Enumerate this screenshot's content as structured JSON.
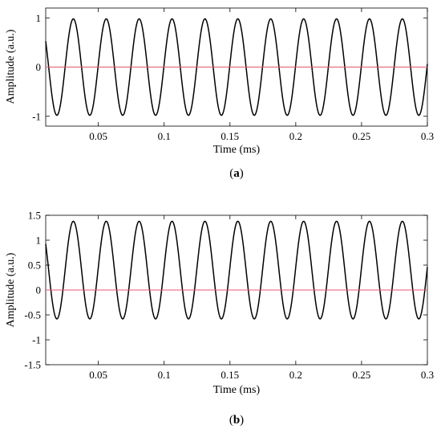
{
  "colors": {
    "signal": "#000000",
    "baseline": "#e8556f",
    "axis": "#000000"
  },
  "chart_data": [
    {
      "type": "line",
      "caption_open": "(",
      "caption_letter": "a",
      "caption_close": ")",
      "title": "",
      "xlabel": "Time (ms)",
      "ylabel": "Amplitude (a.u.)",
      "xlim": [
        0.01,
        0.3
      ],
      "ylim": [
        -1.2,
        1.2
      ],
      "x_ticks": [
        0.05,
        0.1,
        0.15,
        0.2,
        0.25,
        0.3
      ],
      "x_tick_labels": [
        "0.05",
        "0.1",
        "0.15",
        "0.2",
        "0.25",
        "0.3"
      ],
      "y_ticks": [
        -1,
        0,
        1
      ],
      "y_tick_labels": [
        "-1",
        "0",
        "1"
      ],
      "grid": false,
      "series": [
        {
          "kind": "sinusoid",
          "offset": 0,
          "amplitude": 0.98,
          "period_ms": 0.025,
          "peak_at_ms": 0.031,
          "color": "#000000"
        },
        {
          "kind": "constant",
          "value": 0,
          "color": "#e8556f"
        }
      ]
    },
    {
      "type": "line",
      "caption_open": "(",
      "caption_letter": "b",
      "caption_close": ")",
      "title": "",
      "xlabel": "Time (ms)",
      "ylabel": "Amplitude (a.u.)",
      "xlim": [
        0.01,
        0.3
      ],
      "ylim": [
        -1.5,
        1.5
      ],
      "x_ticks": [
        0.05,
        0.1,
        0.15,
        0.2,
        0.25,
        0.3
      ],
      "x_tick_labels": [
        "0.05",
        "0.1",
        "0.15",
        "0.2",
        "0.25",
        "0.3"
      ],
      "y_ticks": [
        -1.5,
        -1,
        -0.5,
        0,
        0.5,
        1,
        1.5
      ],
      "y_tick_labels": [
        "-1.5",
        "-1",
        "-0.5",
        "0",
        "0.5",
        "1",
        "1.5"
      ],
      "grid": false,
      "series": [
        {
          "kind": "sinusoid",
          "offset": 0.4,
          "amplitude": 0.98,
          "period_ms": 0.025,
          "peak_at_ms": 0.031,
          "color": "#000000"
        },
        {
          "kind": "constant",
          "value": 0,
          "color": "#e8556f"
        }
      ]
    }
  ]
}
